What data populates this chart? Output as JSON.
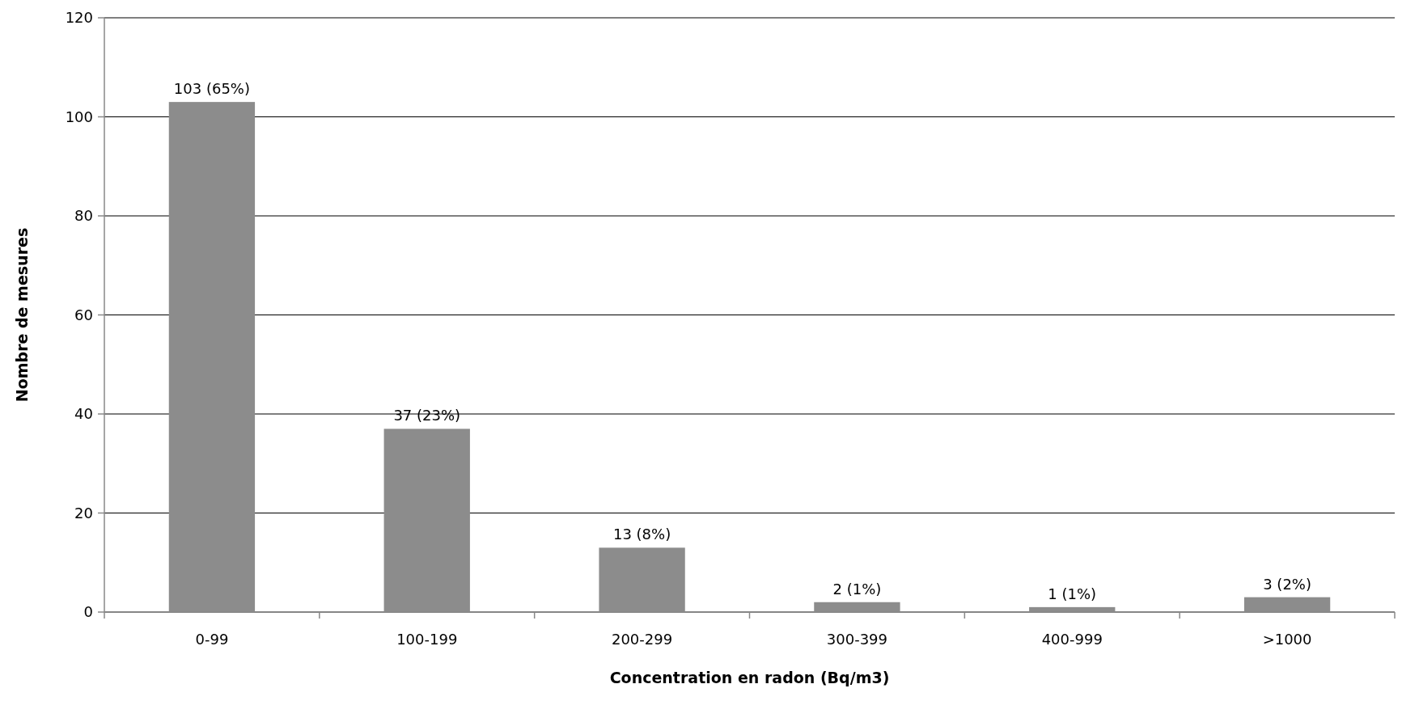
{
  "chart_data": {
    "type": "bar",
    "xlabel": "Concentration en radon (Bq/m3)",
    "ylabel": "Nombre de mesures",
    "categories": [
      "0-99",
      "100-199",
      "200-299",
      "300-399",
      "400-999",
      ">1000"
    ],
    "values": [
      103,
      37,
      13,
      2,
      1,
      3
    ],
    "value_labels": [
      "103 (65%)",
      "37 (23%)",
      "13 (8%)",
      "2 (1%)",
      "1 (1%)",
      "3 (2%)"
    ],
    "color": "#8c8c8c",
    "ylim": [
      0,
      120
    ],
    "yticks": [
      0,
      20,
      40,
      60,
      80,
      100,
      120
    ],
    "grid": "y"
  }
}
